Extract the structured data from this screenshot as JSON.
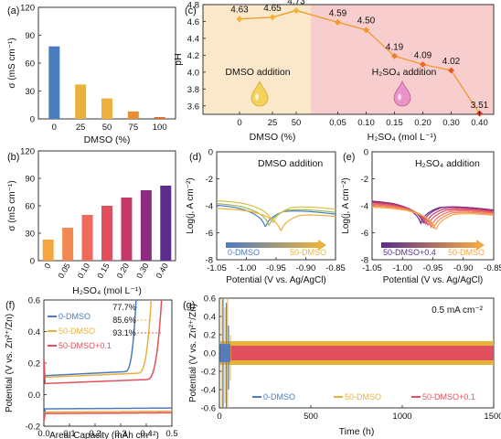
{
  "chart_data": [
    {
      "panel": "(a)",
      "type": "bar",
      "categories": [
        "0",
        "25",
        "50",
        "75",
        "100"
      ],
      "values": [
        78,
        37,
        22,
        8,
        2
      ],
      "colors": [
        "#4a7cc2",
        "#e8b23a",
        "#f0b040",
        "#e89030",
        "#e07030"
      ],
      "xlabel": "DMSO (%)",
      "ylabel": "σ (mS cm⁻¹)",
      "ylim": [
        0,
        120
      ],
      "yticks": [
        "0",
        "30",
        "60",
        "90",
        "120"
      ]
    },
    {
      "panel": "(b)",
      "type": "bar",
      "categories": [
        "0",
        "0.05",
        "0.10",
        "0.15",
        "0.20",
        "0.30",
        "0.40"
      ],
      "values": [
        23,
        36,
        50,
        60,
        69,
        77,
        82
      ],
      "colors": [
        "#f4a642",
        "#f28852",
        "#ee6a5c",
        "#e0505e",
        "#c4386a",
        "#8e2b7e",
        "#5a2d8e"
      ],
      "xlabel": "H₂SO₄ (mol L⁻¹)",
      "ylabel": "σ (mS cm⁻¹)",
      "ylim": [
        0,
        120
      ],
      "yticks": [
        "0",
        "30",
        "60",
        "90",
        "120"
      ]
    },
    {
      "panel": "(c)",
      "type": "line",
      "ylabel": "pH",
      "ylim": [
        3.5,
        4.8
      ],
      "yticks": [
        "3.6",
        "3.8",
        "4.0",
        "4.2",
        "4.4",
        "4.6",
        "4.8"
      ],
      "regions": [
        {
          "label": "DMSO addition",
          "color": "#fbe7c9",
          "xlabel": "DMSO (%)",
          "ticks": [
            "0",
            "25",
            "50"
          ]
        },
        {
          "label": "H₂SO₄  addition",
          "color": "#f8cdcd",
          "xlabel": "H₂SO₄ (mol L⁻¹)",
          "ticks": [
            "0.05",
            "0.10",
            "0.15",
            "0.20",
            "0.30",
            "0.40"
          ]
        }
      ],
      "values": [
        4.63,
        4.65,
        4.73,
        4.59,
        4.5,
        4.19,
        4.09,
        4.02,
        3.51
      ],
      "labels": [
        "4.63",
        "4.65",
        "4.73",
        "4.59",
        "4.50",
        "4.19",
        "4.09",
        "4.02",
        "3.51"
      ],
      "point_colors": [
        "#f2b632",
        "#f2b632",
        "#f2b632",
        "#f09a2c",
        "#f09a2c",
        "#ee7e28",
        "#ec6a26",
        "#ea5a24",
        "#e03020"
      ],
      "line_color": "#f09a2c"
    },
    {
      "panel": "(d)",
      "type": "line",
      "title": "DMSO addition",
      "xlabel": "Potential (V vs. Ag/AgCl)",
      "ylabel": "Log(j, A cm⁻²)",
      "xlim": [
        -1.05,
        -0.85
      ],
      "ylim": [
        -8,
        0
      ],
      "xticks": [
        "-1.05",
        "-1.00",
        "-0.95",
        "-0.90",
        "-0.85"
      ],
      "yticks": [
        "-8",
        "-6",
        "-4",
        "-2",
        "0"
      ],
      "legend": {
        "from": "0-DMSO",
        "to": "50-DMSO"
      },
      "series": [
        {
          "color": "#4a7cc2",
          "e0": -0.968,
          "j0": -5.6
        },
        {
          "color": "#9bb85a",
          "e0": -0.962,
          "j0": -5.5
        },
        {
          "color": "#d8c04a",
          "e0": -0.955,
          "j0": -5.3
        },
        {
          "color": "#e8b23a",
          "e0": -0.942,
          "j0": -5.9
        }
      ]
    },
    {
      "panel": "(e)",
      "type": "line",
      "title": "H₂SO₄  addition",
      "xlabel": "Potential (V vs. Ag/AgCl)",
      "ylabel": "Log(j, A cm⁻²)",
      "xlim": [
        -1.05,
        -0.85
      ],
      "ylim": [
        -8,
        0
      ],
      "xticks": [
        "-1.05",
        "-1.00",
        "-0.95",
        "-0.90",
        "-0.85"
      ],
      "yticks": [
        "-8",
        "-6",
        "-4",
        "-2",
        "0"
      ],
      "legend": {
        "from": "50-DMSO+0.4",
        "to": "50-DMSO"
      },
      "series": [
        {
          "color": "#5a2d8e",
          "e0": -0.97,
          "j0": -5.3
        },
        {
          "color": "#8e2b7e",
          "e0": -0.966,
          "j0": -5.3
        },
        {
          "color": "#c4386a",
          "e0": -0.962,
          "j0": -5.4
        },
        {
          "color": "#e0505e",
          "e0": -0.958,
          "j0": -5.5
        },
        {
          "color": "#ee6a5c",
          "e0": -0.953,
          "j0": -5.6
        },
        {
          "color": "#f28852",
          "e0": -0.949,
          "j0": -5.7
        },
        {
          "color": "#f4a642",
          "e0": -0.945,
          "j0": -5.8
        }
      ]
    },
    {
      "panel": "(f)",
      "type": "line",
      "xlabel": "Areal Capacity (mAh cm⁻²)",
      "ylabel": "Potential (V vs. Zn²⁺/Zn)",
      "xlim": [
        0,
        0.5
      ],
      "ylim": [
        -0.2,
        0.6
      ],
      "xticks": [
        "0.0",
        "0.1",
        "0.2",
        "0.3",
        "0.4",
        "0.5"
      ],
      "yticks": [
        "-0.2",
        "0.0",
        "0.2",
        "0.4",
        "0.6"
      ],
      "series": [
        {
          "name": "0-DMSO",
          "color": "#4a7cc2",
          "end": 0.37,
          "plate": 0.12,
          "strip": -0.09
        },
        {
          "name": "50-DMSO",
          "color": "#e8b23a",
          "end": 0.43,
          "plate": 0.11,
          "strip": -0.11
        },
        {
          "name": "50-DMSO+0.1",
          "color": "#e0505e",
          "end": 0.47,
          "plate": 0.07,
          "strip": -0.12
        }
      ],
      "annotations": [
        "77.7%",
        "85.6%",
        "93.1%"
      ]
    },
    {
      "panel": "(g)",
      "type": "line",
      "xlabel": "Time (h)",
      "ylabel": "Potential (V vs. Zn²⁺/Zn)",
      "note": "0.5 mA cm⁻²",
      "xlim": [
        0,
        1500
      ],
      "ylim": [
        -0.6,
        0.6
      ],
      "xticks": [
        "0",
        "500",
        "1000",
        "1500"
      ],
      "yticks": [
        "-0.6",
        "-0.4",
        "-0.2",
        "0.0",
        "0.2",
        "0.4",
        "0.6"
      ],
      "series": [
        {
          "name": "0-DMSO",
          "color": "#4a7cc2",
          "end": 60,
          "amp": 0.1
        },
        {
          "name": "50-DMSO",
          "color": "#e8b23a",
          "end": 1500,
          "amp": 0.13
        },
        {
          "name": "50-DMSO+0.1",
          "color": "#e0505e",
          "end": 1500,
          "amp": 0.08
        }
      ]
    }
  ]
}
